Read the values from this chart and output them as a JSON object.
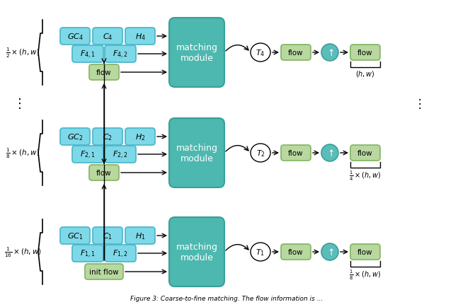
{
  "bg_color": "#ffffff",
  "rows": [
    {
      "scale_label": "$\\frac{1}{2}\\times(h,w)$",
      "gc_label": "$GC_4$",
      "c_label": "$C_4$",
      "h_label": "$H_4$",
      "f1_label": "$F_{4,1}$",
      "f2_label": "$F_{4,2}$",
      "flow_in_label": "flow",
      "t_label": "$T_4$",
      "out_scale_label": "$(h,w)$",
      "has_dots_left": true,
      "has_dots_right": false
    },
    {
      "scale_label": "$\\frac{1}{8}\\times(h,w)$",
      "gc_label": "$GC_2$",
      "c_label": "$C_2$",
      "h_label": "$H_2$",
      "f1_label": "$F_{2,1}$",
      "f2_label": "$F_{2,2}$",
      "flow_in_label": "flow",
      "t_label": "$T_2$",
      "out_scale_label": "$\\frac{1}{4}\\times(h,w)$",
      "has_dots_left": false,
      "has_dots_right": true
    },
    {
      "scale_label": "$\\frac{1}{16}\\times(h,w)$",
      "gc_label": "$GC_1$",
      "c_label": "$C_1$",
      "h_label": "$H_1$",
      "f1_label": "$F_{1,1}$",
      "f2_label": "$F_{1,2}$",
      "flow_in_label": "init flow",
      "t_label": "$T_1$",
      "out_scale_label": "$\\frac{1}{8}\\times(h,w)$",
      "has_dots_left": false,
      "has_dots_right": false
    }
  ],
  "color_blue_box": "#7dd8e8",
  "color_teal_module": "#4db8b0",
  "color_green_box": "#b8d8a0",
  "color_teal_circle": "#5bbcb8",
  "color_border_blue": "#50b8cc",
  "color_border_green": "#88b868",
  "color_border_teal": "#38a098"
}
